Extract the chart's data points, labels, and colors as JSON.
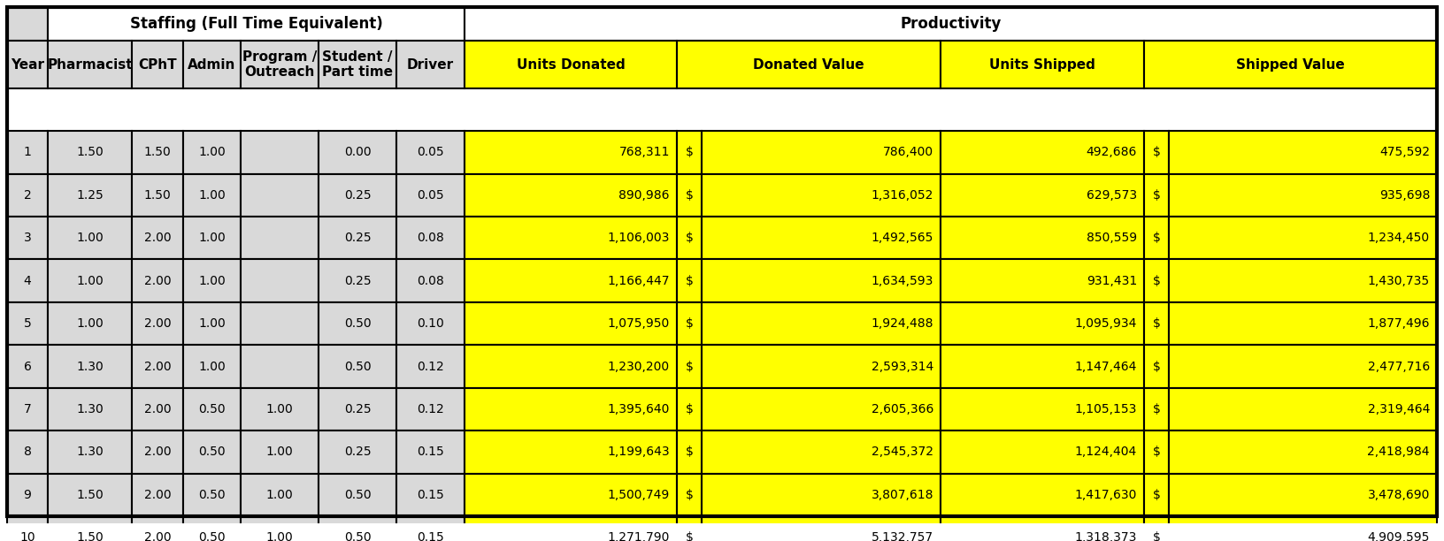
{
  "col_headers_staffing": [
    "Year",
    "Pharmacist",
    "CPhT",
    "Admin",
    "Program /\nOutreach",
    "Student /\nPart time",
    "Driver"
  ],
  "col_headers_productivity": [
    "Units Donated",
    "Donated Value",
    "Units Shipped",
    "Shipped Value"
  ],
  "group_header_staffing": "Staffing (Full Time Equivalent)",
  "group_header_productivity": "Productivity",
  "rows": [
    {
      "year": 1,
      "pharmacist": "1.50",
      "cpht": "1.50",
      "admin": "1.00",
      "program": "",
      "student": "0.00",
      "driver": "0.05",
      "units_donated": "768,311",
      "donated_value": "786,400",
      "units_shipped": "492,686",
      "shipped_value": "475,592"
    },
    {
      "year": 2,
      "pharmacist": "1.25",
      "cpht": "1.50",
      "admin": "1.00",
      "program": "",
      "student": "0.25",
      "driver": "0.05",
      "units_donated": "890,986",
      "donated_value": "1,316,052",
      "units_shipped": "629,573",
      "shipped_value": "935,698"
    },
    {
      "year": 3,
      "pharmacist": "1.00",
      "cpht": "2.00",
      "admin": "1.00",
      "program": "",
      "student": "0.25",
      "driver": "0.08",
      "units_donated": "1,106,003",
      "donated_value": "1,492,565",
      "units_shipped": "850,559",
      "shipped_value": "1,234,450"
    },
    {
      "year": 4,
      "pharmacist": "1.00",
      "cpht": "2.00",
      "admin": "1.00",
      "program": "",
      "student": "0.25",
      "driver": "0.08",
      "units_donated": "1,166,447",
      "donated_value": "1,634,593",
      "units_shipped": "931,431",
      "shipped_value": "1,430,735"
    },
    {
      "year": 5,
      "pharmacist": "1.00",
      "cpht": "2.00",
      "admin": "1.00",
      "program": "",
      "student": "0.50",
      "driver": "0.10",
      "units_donated": "1,075,950",
      "donated_value": "1,924,488",
      "units_shipped": "1,095,934",
      "shipped_value": "1,877,496"
    },
    {
      "year": 6,
      "pharmacist": "1.30",
      "cpht": "2.00",
      "admin": "1.00",
      "program": "",
      "student": "0.50",
      "driver": "0.12",
      "units_donated": "1,230,200",
      "donated_value": "2,593,314",
      "units_shipped": "1,147,464",
      "shipped_value": "2,477,716"
    },
    {
      "year": 7,
      "pharmacist": "1.30",
      "cpht": "2.00",
      "admin": "0.50",
      "program": "1.00",
      "student": "0.25",
      "driver": "0.12",
      "units_donated": "1,395,640",
      "donated_value": "2,605,366",
      "units_shipped": "1,105,153",
      "shipped_value": "2,319,464"
    },
    {
      "year": 8,
      "pharmacist": "1.30",
      "cpht": "2.00",
      "admin": "0.50",
      "program": "1.00",
      "student": "0.25",
      "driver": "0.15",
      "units_donated": "1,199,643",
      "donated_value": "2,545,372",
      "units_shipped": "1,124,404",
      "shipped_value": "2,418,984"
    },
    {
      "year": 9,
      "pharmacist": "1.50",
      "cpht": "2.00",
      "admin": "0.50",
      "program": "1.00",
      "student": "0.50",
      "driver": "0.15",
      "units_donated": "1,500,749",
      "donated_value": "3,807,618",
      "units_shipped": "1,417,630",
      "shipped_value": "3,478,690"
    },
    {
      "year": 10,
      "pharmacist": "1.50",
      "cpht": "2.00",
      "admin": "0.50",
      "program": "1.00",
      "student": "0.50",
      "driver": "0.15",
      "units_donated": "1,271,790",
      "donated_value": "5,132,757",
      "units_shipped": "1,318,373",
      "shipped_value": "4,909,595"
    }
  ],
  "bg_staffing_header": "#d9d9d9",
  "bg_productivity_header": "#ffff00",
  "bg_col_header_staffing": "#d9d9d9",
  "bg_col_header_productivity": "#ffff00",
  "bg_data_staffing": "#d9d9d9",
  "bg_data_productivity": "#ffff00",
  "bg_group_header_staffing": "#ffffff",
  "bg_group_header_productivity": "#ffffff",
  "text_color_staffing": "#000000",
  "text_color_productivity": "#000000",
  "border_color": "#000000",
  "font_size_header": 11,
  "font_size_data": 10,
  "font_size_group": 12
}
